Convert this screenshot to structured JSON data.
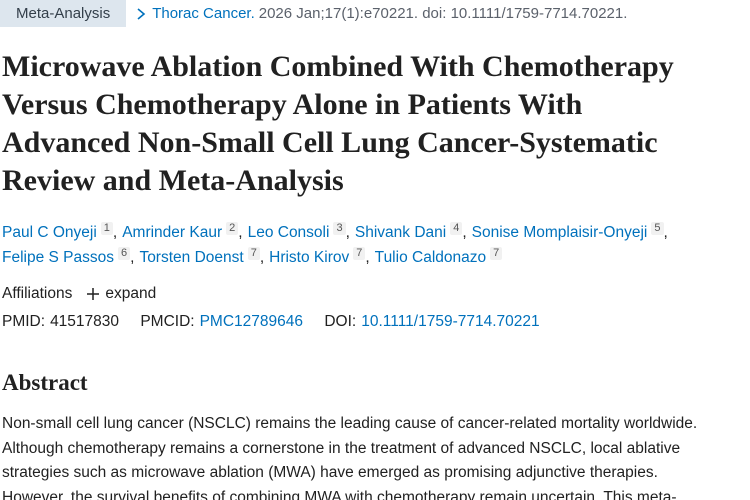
{
  "header": {
    "type": "Meta-Analysis",
    "journal": "Thorac Cancer.",
    "citation": "2026 Jan;17(1):e70221. doi: 10.1111/1759-7714.70221."
  },
  "title_lines": [
    "Microwave Ablation Combined With Chemotherapy",
    "Versus Chemotherapy Alone in Patients With",
    "Advanced Non-Small Cell Lung Cancer-Systematic",
    "Review and Meta-Analysis"
  ],
  "authors": [
    [
      {
        "name": "Paul C Onyeji",
        "aff": "1",
        "sep": ","
      },
      {
        "name": "Amrinder Kaur",
        "aff": "2",
        "sep": ","
      },
      {
        "name": "Leo Consoli",
        "aff": "3",
        "sep": ","
      },
      {
        "name": "Shivank Dani",
        "aff": "4",
        "sep": ","
      },
      {
        "name": "Sonise Momplaisir-Onyeji",
        "aff": "5",
        "sep": ","
      }
    ],
    [
      {
        "name": "Felipe S Passos",
        "aff": "6",
        "sep": ","
      },
      {
        "name": "Torsten Doenst",
        "aff": "7",
        "sep": ","
      },
      {
        "name": "Hristo Kirov",
        "aff": "7",
        "sep": ","
      },
      {
        "name": "Tulio Caldonazo",
        "aff": "7"
      }
    ]
  ],
  "affiliations": {
    "label": "Affiliations",
    "toggle": "expand"
  },
  "ids": {
    "pmid_label": "PMID:",
    "pmid": "41517830",
    "pmcid_label": "PMCID:",
    "pmcid": "PMC12789646",
    "doi_label": "DOI:",
    "doi": "10.1111/1759-7714.70221"
  },
  "abstract": {
    "heading": "Abstract",
    "lines": [
      "Non-small cell lung cancer (NSCLC) remains the leading cause of cancer-related mortality worldwide.",
      "Although chemotherapy remains a cornerstone in the treatment of advanced NSCLC, local ablative",
      "strategies such as microwave ablation (MWA) have emerged as promising adjunctive therapies.",
      "However, the survival benefits of combining MWA with chemotherapy remain uncertain. This meta-"
    ]
  }
}
